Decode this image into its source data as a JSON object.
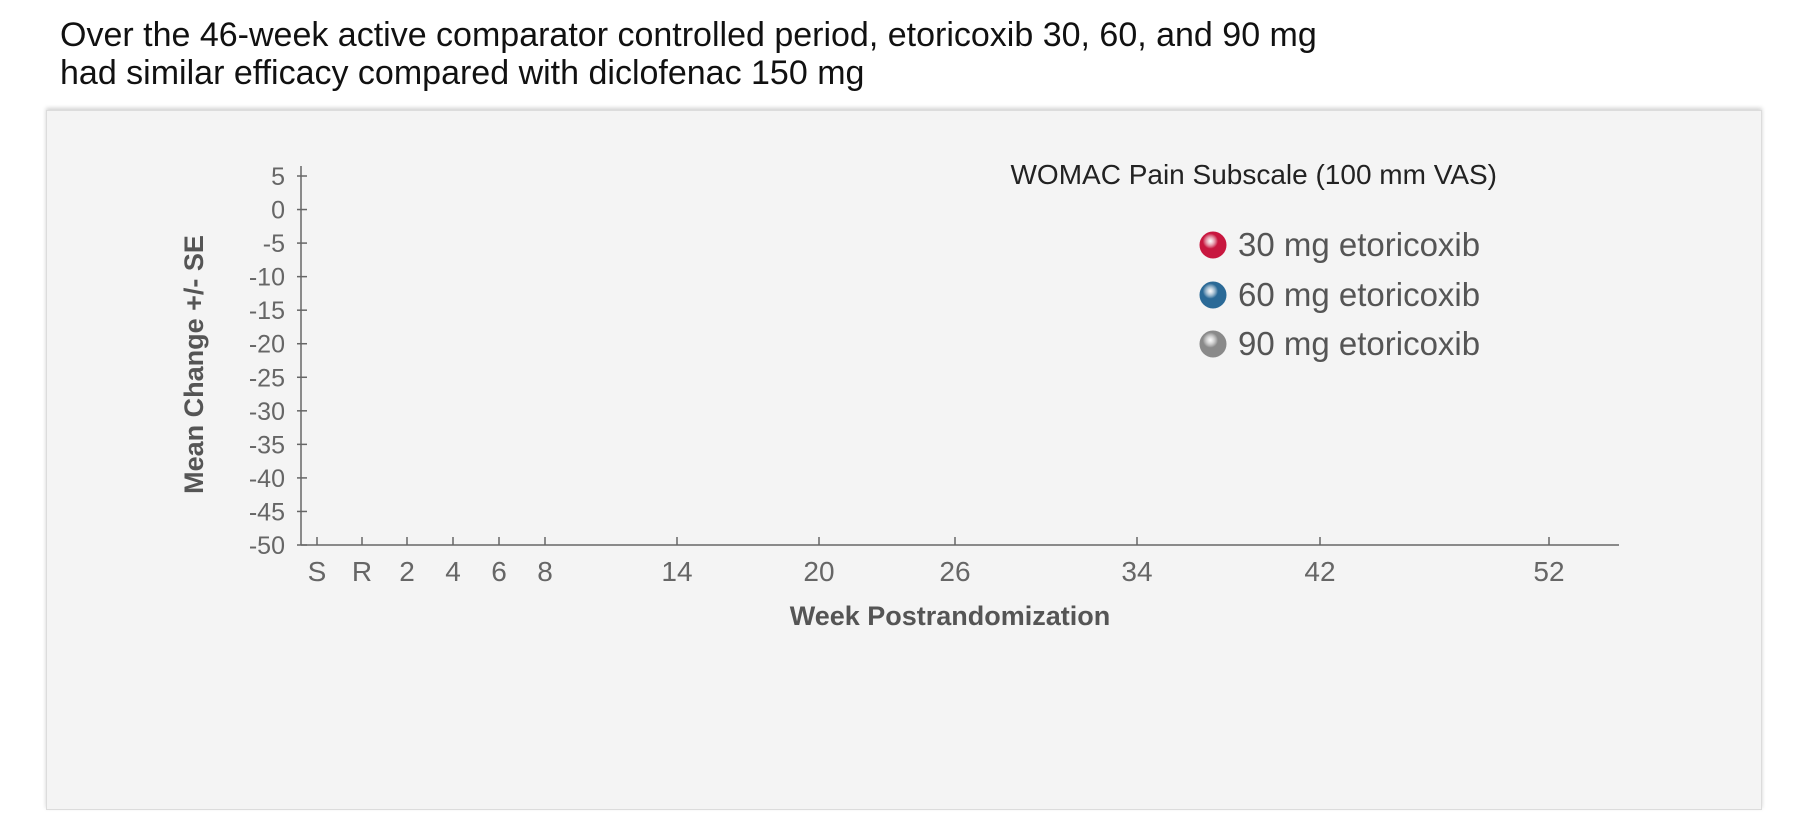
{
  "headline": {
    "line1": "Over the 46-week active comparator controlled period, etoricoxib 30, 60, and 90 mg",
    "line2": "had similar efficacy compared with diclofenac 150 mg"
  },
  "chart_data": {
    "type": "line",
    "title": "WOMAC Pain Subscale (100 mm VAS)",
    "xlabel": "Week Postrandomization",
    "ylabel": "Mean Change +/- SE",
    "x_categories": [
      "S",
      "R",
      "2",
      "4",
      "6",
      "8",
      "14",
      "20",
      "26",
      "34",
      "42",
      "52"
    ],
    "y_ticks": [
      5,
      0,
      -5,
      -10,
      -15,
      -20,
      -25,
      -30,
      -35,
      -40,
      -45,
      -50
    ],
    "ylim": [
      -50,
      5
    ],
    "grid": false,
    "legend_position": "top-right",
    "series": [
      {
        "name": "30 mg etoricoxib",
        "color": "#c8173f",
        "values": []
      },
      {
        "name": "60 mg etoricoxib",
        "color": "#2b6a97",
        "values": []
      },
      {
        "name": "90 mg etoricoxib",
        "color": "#8a8a8a",
        "values": []
      }
    ]
  }
}
